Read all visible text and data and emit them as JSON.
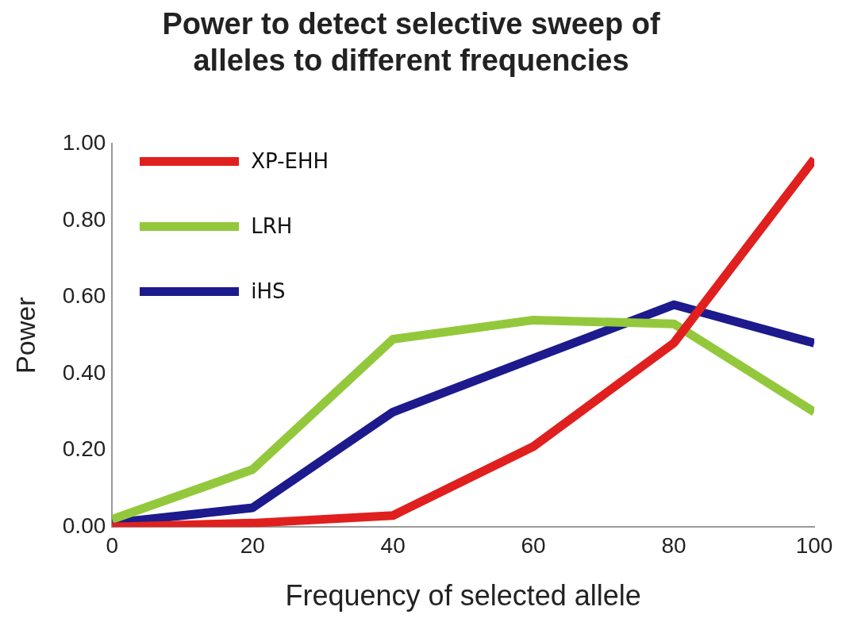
{
  "chart_data": {
    "type": "line",
    "title": [
      "Power to detect selective sweep of",
      "alleles to different frequencies"
    ],
    "xlabel": "Frequency of selected allele",
    "ylabel": "Power",
    "x": [
      0,
      20,
      40,
      60,
      80,
      100
    ],
    "series": [
      {
        "name": "XP-EHH",
        "color": "#e0201e",
        "values": [
          0.0,
          0.01,
          0.03,
          0.21,
          0.48,
          0.96
        ]
      },
      {
        "name": "LRH",
        "color": "#94c83c",
        "values": [
          0.02,
          0.15,
          0.49,
          0.54,
          0.53,
          0.3
        ]
      },
      {
        "name": "iHS",
        "color": "#1c1a8c",
        "values": [
          0.01,
          0.05,
          0.3,
          0.44,
          0.58,
          0.48
        ]
      }
    ],
    "xlim": [
      0,
      100
    ],
    "xticks": [
      0,
      20,
      40,
      60,
      80,
      100
    ],
    "ylim": [
      0,
      1
    ],
    "yticks": [
      {
        "value": 0,
        "label": "0.00"
      },
      {
        "value": 0.2,
        "label": "0.20"
      },
      {
        "value": 0.4,
        "label": "0.40"
      },
      {
        "value": 0.6,
        "label": "0.60"
      },
      {
        "value": 0.8,
        "label": "0.80"
      },
      {
        "value": 1,
        "label": "1.00"
      }
    ],
    "grid": false,
    "legend": "top left",
    "marker": "none",
    "line_style": "solid"
  }
}
